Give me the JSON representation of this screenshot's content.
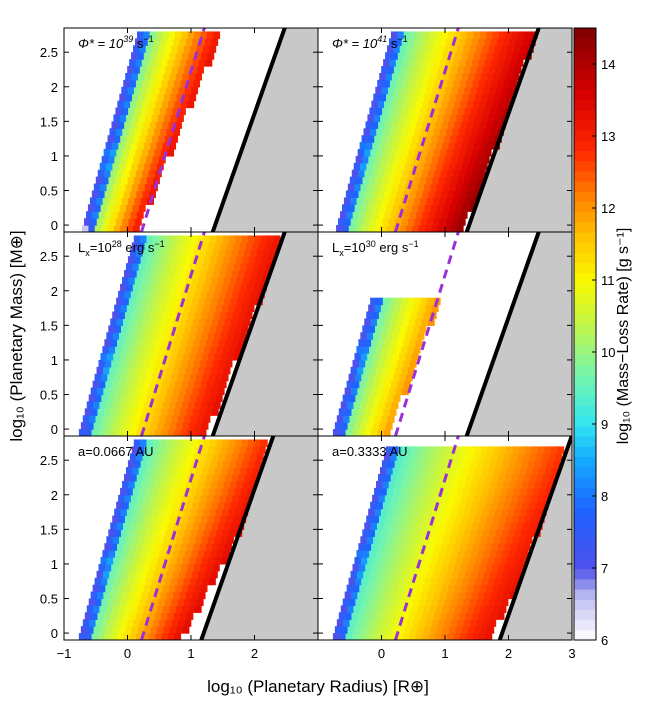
{
  "chart_data": {
    "type": "heatmap",
    "x_axis": {
      "label": "log₁₀ (Planetary Radius) [R⊕]",
      "range": [
        -1,
        3
      ],
      "ticks": [
        -1,
        0,
        1,
        2,
        3
      ],
      "tick_labels_left": [
        "−1",
        "0",
        "1",
        "2"
      ],
      "tick_labels_right": [
        "0",
        "1",
        "2",
        "3"
      ]
    },
    "y_axis": {
      "label": "log₁₀ (Planetary Mass) [M⊕]",
      "range": [
        -0.1,
        2.85
      ],
      "ticks": [
        0,
        0.5,
        1,
        1.5,
        2,
        2.5
      ],
      "tick_labels": [
        "0",
        "0.5",
        "1",
        "1.5",
        "2",
        "2.5"
      ]
    },
    "colorbar": {
      "label": "log₁₀ (Mass−Loss Rate) [g s⁻¹]",
      "range": [
        6,
        14.5
      ],
      "ticks": [
        6,
        7,
        8,
        9,
        10,
        11,
        12,
        13,
        14
      ],
      "tick_labels": [
        "6",
        "7",
        "8",
        "9",
        "10",
        "11",
        "12",
        "13",
        "14"
      ]
    },
    "reference_lines": {
      "dashed_line": {
        "color": "#9b30d9",
        "points": [
          [
            0.22,
            -0.1
          ],
          [
            1.21,
            2.85
          ]
        ]
      },
      "solid_line": {
        "color": "#000000",
        "slope": 2.6
      }
    },
    "panels": [
      {
        "id": "a",
        "row": 0,
        "col": 0,
        "label_main": "Φ* = 10",
        "label_sup": "39",
        "label_unit": "s",
        "label_unit_sup": "−1",
        "xmin": -0.7,
        "width_a": 0.85,
        "width_b": 0.15,
        "vmin": 8.9,
        "vmax": 13.2,
        "rmax_const": 1.85,
        "mmax": 2.78,
        "solid_x0": 1.38
      },
      {
        "id": "b",
        "row": 0,
        "col": 1,
        "label_main": "Φ* = 10",
        "label_sup": "41",
        "label_unit": "s",
        "label_unit_sup": "−1",
        "xmin": -0.7,
        "width_a": 1.95,
        "width_b": 0.22,
        "vmin": 8.9,
        "vmax": 14.3,
        "rmax_const": 2.05,
        "mmax": 2.8,
        "solid_x0": 1.38
      },
      {
        "id": "c",
        "row": 1,
        "col": 0,
        "label_main": "L",
        "label_sub": "x",
        "label_mid": "=10",
        "label_sup": "28",
        "label_unit": " erg s",
        "label_unit_sup": "−1",
        "xmin": -0.75,
        "width_a": 1.98,
        "width_b": 0.12,
        "vmin": 8.9,
        "vmax": 13.3,
        "rmax_const": 2.3,
        "mmax": 2.8,
        "solid_x0": 1.38
      },
      {
        "id": "d",
        "row": 1,
        "col": 1,
        "label_main": "L",
        "label_sub": "x",
        "label_mid": "=10",
        "label_sup": "30",
        "label_unit": " erg s",
        "label_unit_sup": "−1",
        "xmin": -0.75,
        "width_a": 0.85,
        "width_b": 0.1,
        "vmin": 8.9,
        "vmax": 12.0,
        "rmax_const": 0.9,
        "mmax": 1.9,
        "solid_x0": 1.38
      },
      {
        "id": "e",
        "row": 2,
        "col": 0,
        "label_main": "a=0.0667 AU",
        "xmin": -0.75,
        "width_a": 1.6,
        "width_b": 0.3,
        "vmin": 8.9,
        "vmax": 13.4,
        "rmax_const": 1.95,
        "mmax": 2.8,
        "solid_x0": 1.2
      },
      {
        "id": "f",
        "row": 2,
        "col": 1,
        "label_main": "a=0.3333 AU",
        "xmin": -0.75,
        "width_a": 2.45,
        "width_b": 0.3,
        "vmin": 8.9,
        "vmax": 13.3,
        "rmax_const": 2.65,
        "mmax": 2.7,
        "solid_x0": 1.9
      }
    ]
  }
}
